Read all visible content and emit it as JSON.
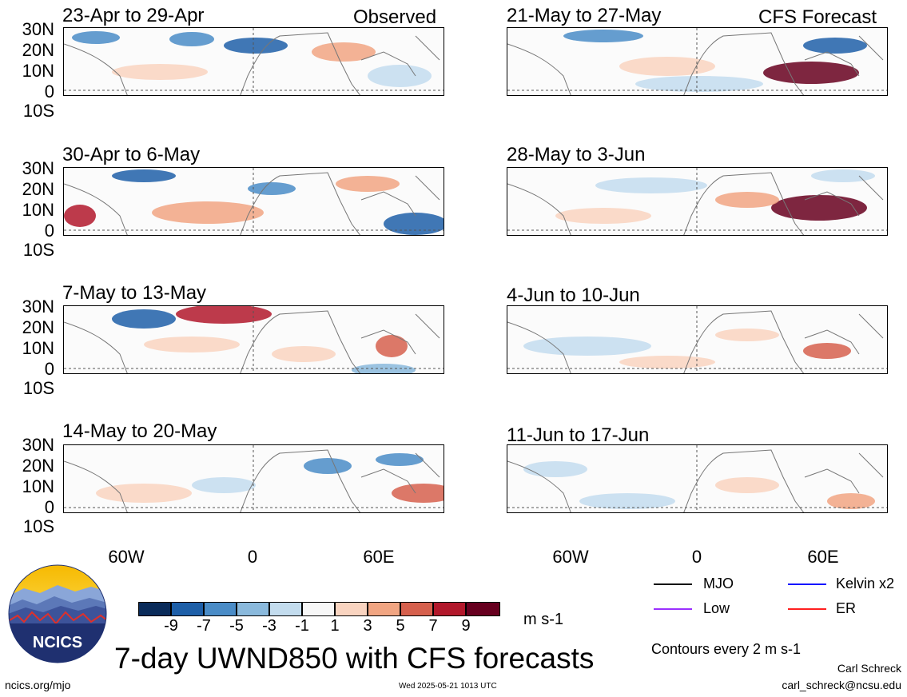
{
  "headers": {
    "observed": "Observed",
    "forecast": "CFS Forecast"
  },
  "panels_left": [
    {
      "title": "23-Apr to 29-Apr"
    },
    {
      "title": "30-Apr to 6-May"
    },
    {
      "title": "7-May to 13-May"
    },
    {
      "title": "14-May to 20-May"
    }
  ],
  "panels_right": [
    {
      "title": "21-May to 27-May"
    },
    {
      "title": "28-May to 3-Jun"
    },
    {
      "title": "4-Jun to 10-Jun"
    },
    {
      "title": "11-Jun to 17-Jun"
    }
  ],
  "lat_labels": [
    "30N",
    "20N",
    "10N",
    "0",
    "10S"
  ],
  "lon_labels": [
    "60W",
    "0",
    "60E"
  ],
  "colorbar": {
    "ticks": [
      "-9",
      "-7",
      "-5",
      "-3",
      "-1",
      "1",
      "3",
      "5",
      "7",
      "9"
    ],
    "colors": [
      "#0a2b5a",
      "#1e5fa8",
      "#4a8cc7",
      "#8ab9dc",
      "#c3dcee",
      "#f7f7f7",
      "#f9d4c0",
      "#f1a582",
      "#d6604d",
      "#b2182b",
      "#67001f"
    ],
    "units": "m s-1"
  },
  "legend": {
    "mjo": "MJO",
    "kelvin": "Kelvin x2",
    "low": "Low",
    "er": "ER",
    "mjo_color": "#000000",
    "kelvin_color": "#1010ff",
    "low_color": "#9b30ff",
    "er_color": "#ff2020",
    "contours_note": "Contours every 2 m s-1"
  },
  "logo": {
    "text": "NCICS"
  },
  "main_title": "7-day UWND850 with CFS forecasts",
  "footer": {
    "url": "ncics.org/mjo",
    "timestamp": "Wed 2025-05-21 1013 UTC",
    "author": "Carl Schreck",
    "email": "carl_schreck@ncsu.edu"
  }
}
